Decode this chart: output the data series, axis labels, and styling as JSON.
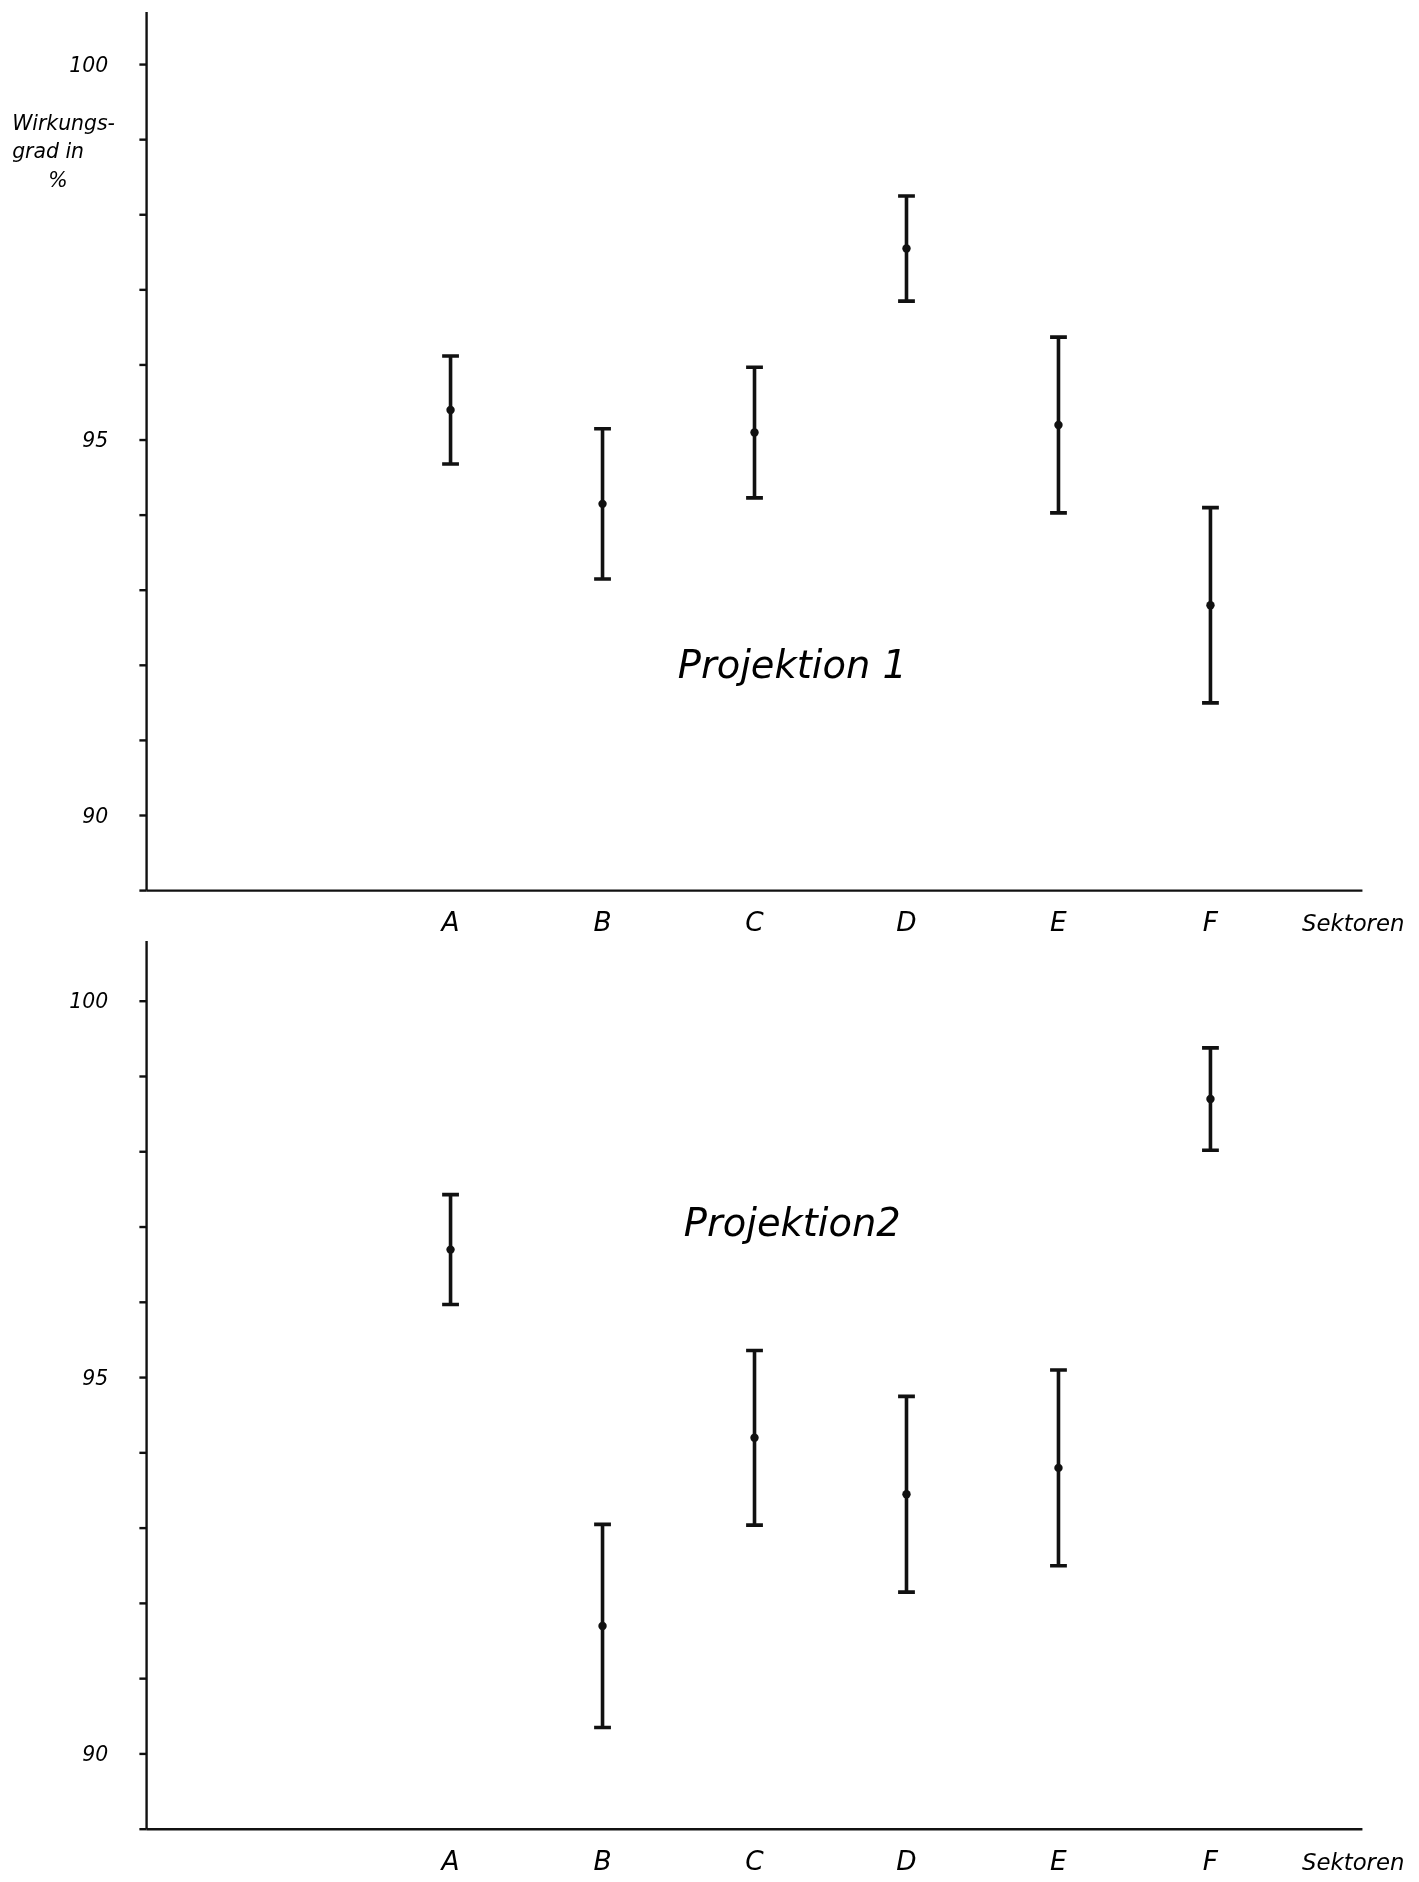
{
  "chart_data": [
    {
      "type": "scatter",
      "title": "Projektion 1",
      "xlabel": "Sektoren",
      "ylabel": "Wirkungs-\ngrad in\n%",
      "categories": [
        null,
        null,
        "A",
        "B",
        "C",
        "D",
        "E",
        "F",
        null
      ],
      "marker": "circle",
      "color": "#111111",
      "values": [
        null,
        null,
        95.4,
        94.15,
        95.1,
        97.55,
        95.2,
        92.8,
        null
      ],
      "errors": [
        null,
        null,
        0.72,
        1.0,
        0.87,
        0.7,
        1.17,
        1.3,
        null
      ],
      "ylim": [
        89,
        100.7
      ],
      "yticks": [
        {
          "value": 89,
          "label": null
        },
        90,
        {
          "value": 91,
          "label": null
        },
        {
          "value": 92,
          "label": null
        },
        {
          "value": 93,
          "label": null
        },
        {
          "value": 94,
          "label": null
        },
        95,
        {
          "value": 96,
          "label": null
        },
        {
          "value": 97,
          "label": null
        },
        {
          "value": 98,
          "label": null
        },
        {
          "value": 99,
          "label": null
        },
        100
      ]
    },
    {
      "type": "scatter",
      "title": "Projektion2",
      "xlabel": "Sektoren",
      "categories": [
        null,
        null,
        "A",
        "B",
        "C",
        "D",
        "E",
        "F",
        null
      ],
      "marker": "circle",
      "color": "#111111",
      "values": [
        null,
        null,
        96.7,
        91.7,
        94.2,
        93.45,
        93.8,
        98.7,
        null
      ],
      "errors": [
        null,
        null,
        0.73,
        1.35,
        1.16,
        1.3,
        1.3,
        0.68,
        null
      ],
      "ylim": [
        89,
        100.8
      ],
      "yticks": [
        {
          "value": 89,
          "label": null
        },
        90,
        {
          "value": 91,
          "label": null
        },
        {
          "value": 92,
          "label": null
        },
        {
          "value": 93,
          "label": null
        },
        {
          "value": 94,
          "label": null
        },
        95,
        {
          "value": 96,
          "label": null
        },
        {
          "value": 97,
          "label": null
        },
        {
          "value": 98,
          "label": null
        },
        {
          "value": 99,
          "label": null
        },
        100
      ]
    }
  ]
}
